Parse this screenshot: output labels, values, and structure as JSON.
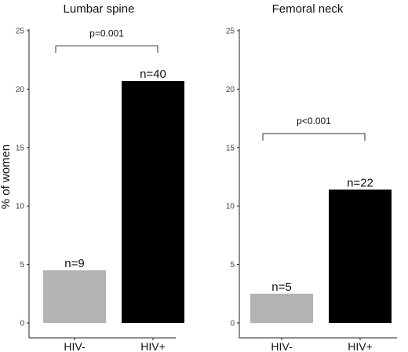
{
  "chart_data": [
    {
      "type": "bar",
      "title": "Lumbar spine",
      "ylabel": "% of women",
      "xlabel": "",
      "ylim": [
        0,
        25
      ],
      "yticks": [
        0,
        5,
        10,
        15,
        20,
        25
      ],
      "categories": [
        "HIV-",
        "HIV+"
      ],
      "values": [
        4.5,
        20.7
      ],
      "bar_labels": [
        "n=9",
        "n=40"
      ],
      "bar_colors": [
        "#b3b3b3",
        "#000000"
      ],
      "annotation": {
        "text": "p=0.001",
        "bracket_y": 23.7
      },
      "grid": false
    },
    {
      "type": "bar",
      "title": "Femoral neck",
      "ylabel": "",
      "xlabel": "",
      "ylim": [
        0,
        25
      ],
      "yticks": [
        0,
        5,
        10,
        15,
        20,
        25
      ],
      "categories": [
        "HIV-",
        "HIV+"
      ],
      "values": [
        2.5,
        11.4
      ],
      "bar_labels": [
        "n=5",
        "n=22"
      ],
      "bar_colors": [
        "#b3b3b3",
        "#000000"
      ],
      "annotation": {
        "text": "p<0.001",
        "bracket_y": 16.2
      },
      "grid": false
    }
  ]
}
